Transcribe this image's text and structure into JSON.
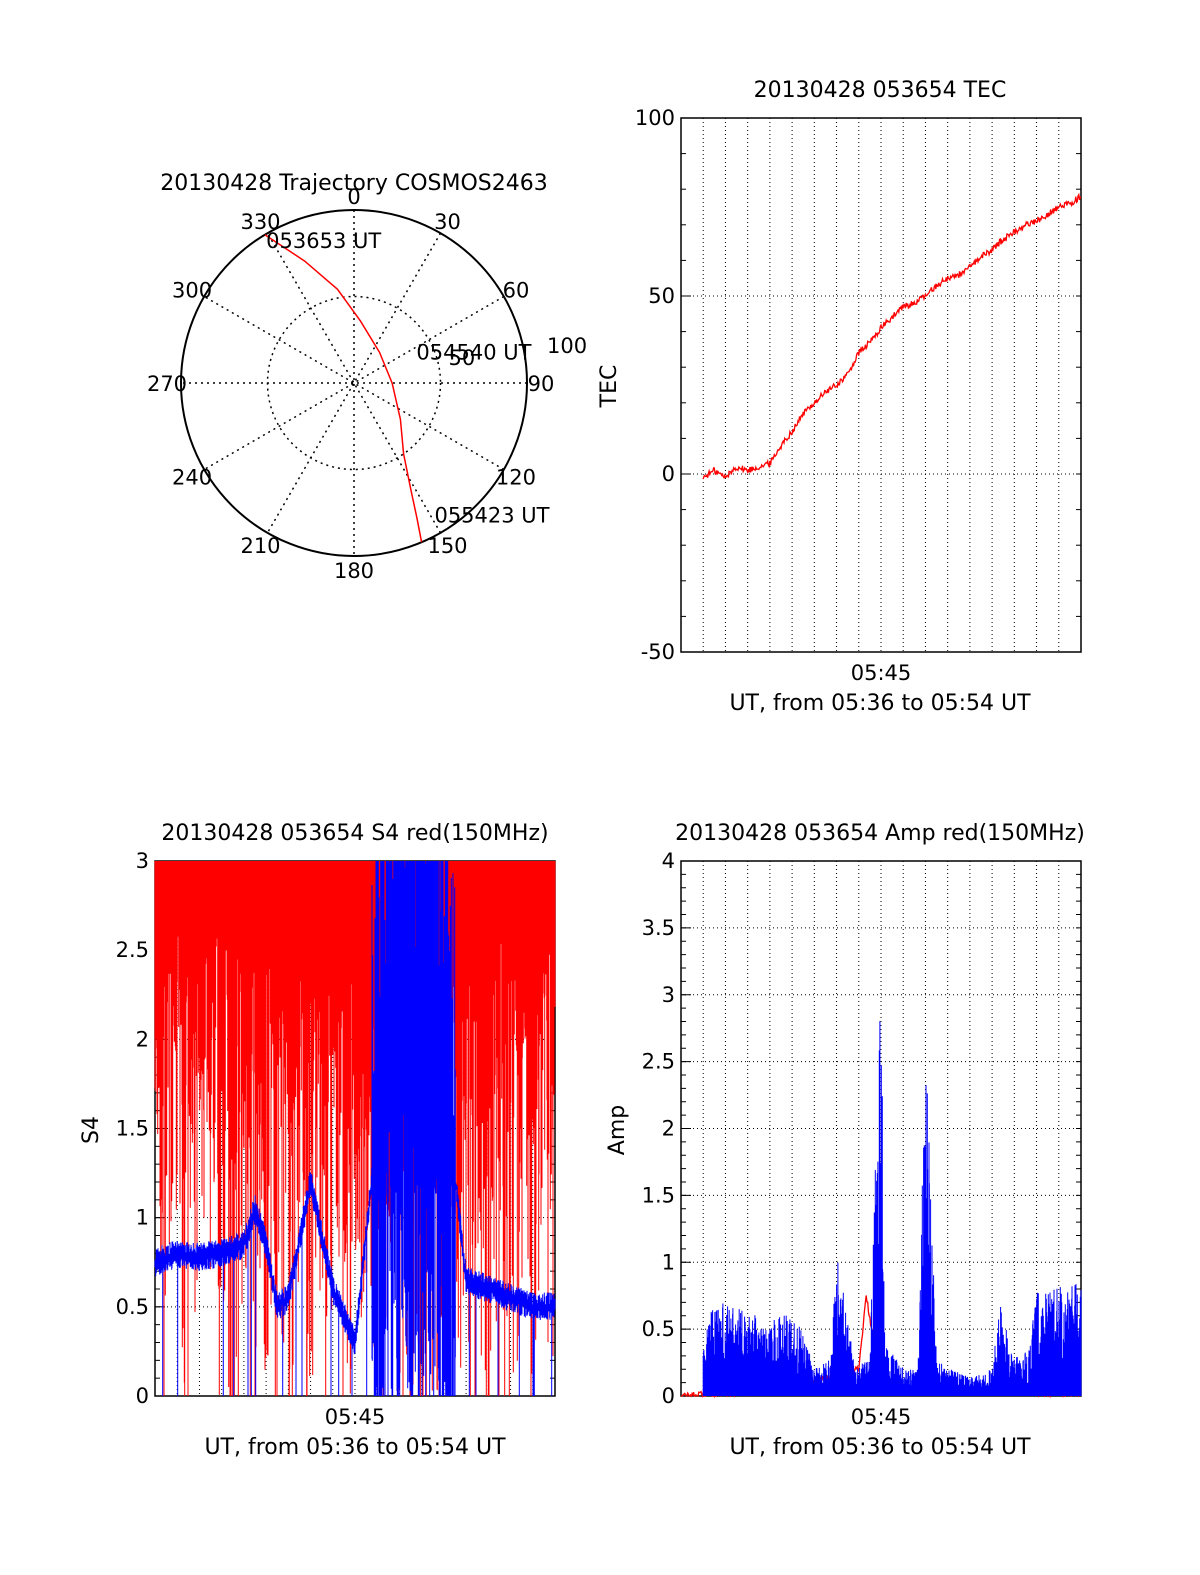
{
  "colors": {
    "red": "#ff0000",
    "blue": "#0000ff",
    "axis": "#000000",
    "grid": "#000000"
  },
  "chart_data": [
    {
      "id": "trajectory",
      "type": "polar",
      "title": "20130428 Trajectory COSMOS2463",
      "angle_labels": [
        "0",
        "30",
        "60",
        "90",
        "120",
        "150",
        "180",
        "210",
        "240",
        "270",
        "300",
        "330"
      ],
      "radius_labels": [
        "50",
        "100"
      ],
      "rlim": [
        0,
        100
      ],
      "grid": true,
      "series": [
        {
          "color": "red",
          "points": [
            [
              329,
              100
            ],
            [
              338,
              76
            ],
            [
              350,
              55
            ],
            [
              6,
              36
            ],
            [
              40,
              23
            ],
            [
              90,
              22
            ],
            [
              128,
              34
            ],
            [
              145,
              50
            ],
            [
              152,
              70
            ],
            [
              155,
              86
            ],
            [
              157,
              100
            ]
          ]
        }
      ],
      "annotations": [
        {
          "text": "053653 UT",
          "az": 330,
          "r": 90
        },
        {
          "text": "054540 UT",
          "az": 72,
          "r": 44
        },
        {
          "text": "055423 UT",
          "az": 147,
          "r": 96
        }
      ]
    },
    {
      "id": "tec",
      "type": "line",
      "title": "20130428 053654 TEC",
      "xlabel": "UT, from 05:36 to 05:54 UT",
      "ylabel": "TEC",
      "xlim": [
        "05:36",
        "05:54"
      ],
      "ylim": [
        -50,
        100
      ],
      "xticks": [
        {
          "t": "05:45",
          "label": "05:45"
        }
      ],
      "yticks": [
        -50,
        0,
        50,
        100
      ],
      "grid": true,
      "series": [
        {
          "color": "red",
          "x": [
            "05:37",
            "05:37:30",
            "05:38",
            "05:38:30",
            "05:39",
            "05:39:30",
            "05:40",
            "05:40:30",
            "05:41",
            "05:41:30",
            "05:42",
            "05:42:30",
            "05:43",
            "05:43:30",
            "05:44",
            "05:44:30",
            "05:45",
            "05:45:30",
            "05:46",
            "05:46:30",
            "05:47",
            "05:47:30",
            "05:48",
            "05:48:30",
            "05:49",
            "05:49:30",
            "05:50",
            "05:50:30",
            "05:51",
            "05:51:30",
            "05:52",
            "05:52:30",
            "05:53",
            "05:53:30",
            "05:54"
          ],
          "y": [
            -1,
            1,
            -1,
            2,
            1,
            2,
            3,
            8,
            12,
            17,
            20,
            23,
            25,
            28,
            34,
            37,
            41,
            44,
            47,
            48,
            50,
            53,
            55,
            56,
            58,
            61,
            63,
            66,
            68,
            70,
            71,
            73,
            75,
            76,
            78
          ]
        }
      ]
    },
    {
      "id": "s4",
      "type": "line",
      "title": "20130428 053654 S4 red(150MHz)",
      "xlabel": "UT, from 05:36 to 05:54 UT",
      "ylabel": "S4",
      "xlim": [
        "05:36",
        "05:54"
      ],
      "ylim": [
        0,
        3
      ],
      "xticks": [
        {
          "t": "05:45",
          "label": "05:45"
        }
      ],
      "yticks": [
        0,
        0.5,
        1,
        1.5,
        2,
        2.5,
        3
      ],
      "grid": true,
      "series": [
        {
          "color": "red",
          "noisy": true,
          "x": [
            "05:36",
            "05:38",
            "05:40",
            "05:42",
            "05:44",
            "05:46",
            "05:48",
            "05:50",
            "05:52",
            "05:54"
          ],
          "y": [
            2.7,
            2.6,
            2.6,
            2.5,
            2.4,
            2.3,
            2.3,
            2.4,
            2.6,
            2.7
          ]
        },
        {
          "color": "blue",
          "noisy": true,
          "x": [
            "05:36",
            "05:37",
            "05:38",
            "05:39",
            "05:40",
            "05:40:30",
            "05:41",
            "05:41:30",
            "05:42",
            "05:43",
            "05:44",
            "05:45",
            "05:46",
            "05:47",
            "05:48",
            "05:49",
            "05:50",
            "05:51",
            "05:52",
            "05:53",
            "05:54"
          ],
          "y": [
            0.75,
            0.8,
            0.78,
            0.8,
            0.85,
            1.05,
            0.85,
            0.5,
            0.55,
            1.2,
            0.6,
            0.3,
            1.5,
            2.2,
            2.3,
            1.8,
            0.65,
            0.6,
            0.55,
            0.5,
            0.5
          ]
        }
      ]
    },
    {
      "id": "amp",
      "type": "line",
      "title": "20130428 053654 Amp red(150MHz)",
      "xlabel": "UT, from 05:36 to 05:54 UT",
      "ylabel": "Amp",
      "xlim": [
        "05:36",
        "05:54"
      ],
      "ylim": [
        0,
        4
      ],
      "xticks": [
        {
          "t": "05:45",
          "label": "05:45"
        }
      ],
      "yticks": [
        0,
        0.5,
        1,
        1.5,
        2,
        2.5,
        3,
        3.5,
        4
      ],
      "grid": true,
      "series": [
        {
          "color": "red",
          "x": [
            "05:36",
            "05:41",
            "05:42",
            "05:43",
            "05:44",
            "05:44:20",
            "05:44:40",
            "05:45",
            "05:46",
            "05:47",
            "05:48",
            "05:50",
            "05:52",
            "05:54"
          ],
          "y": [
            0.0,
            0.05,
            0.12,
            0.15,
            0.2,
            0.75,
            0.4,
            0.1,
            0.05,
            0.05,
            0.05,
            0.05,
            0.02,
            0.02
          ]
        },
        {
          "color": "blue",
          "noisy": true,
          "x": [
            "05:37",
            "05:38",
            "05:39",
            "05:40",
            "05:41",
            "05:41:30",
            "05:42",
            "05:42:45",
            "05:43",
            "05:43:50",
            "05:44:30",
            "05:45",
            "05:45:10",
            "05:45:40",
            "05:46",
            "05:46:40",
            "05:47",
            "05:47:30",
            "05:48",
            "05:49",
            "05:50",
            "05:50:20",
            "05:51",
            "05:51:40",
            "05:52",
            "05:53",
            "05:54"
          ],
          "y": [
            0.45,
            0.5,
            0.45,
            0.4,
            0.45,
            0.35,
            0.15,
            0.2,
            0.8,
            0.15,
            0.2,
            2.3,
            0.3,
            0.2,
            0.15,
            0.15,
            1.9,
            0.2,
            0.15,
            0.1,
            0.15,
            0.5,
            0.2,
            0.25,
            0.55,
            0.6,
            0.6
          ]
        }
      ]
    }
  ]
}
